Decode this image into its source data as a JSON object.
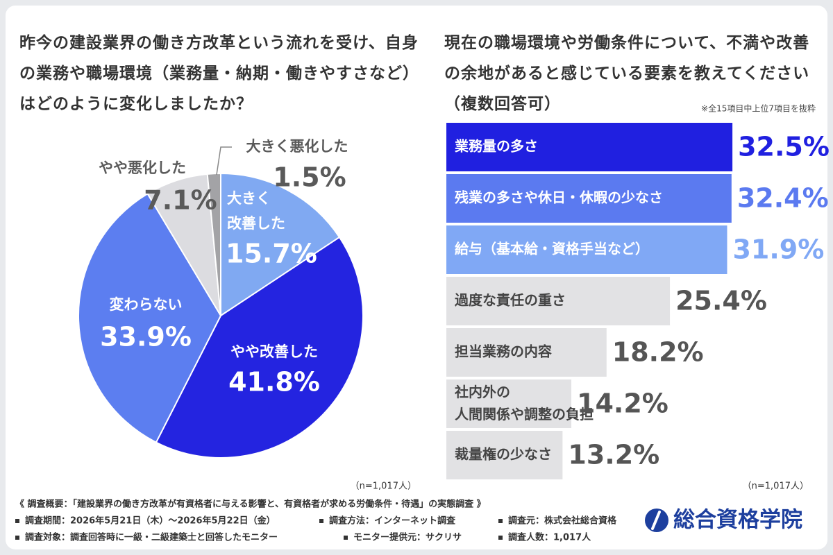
{
  "chart_data": [
    {
      "type": "pie",
      "title": "昨今の建設業界の働き方改革という流れを受け、自身の業務や職場環境（業務量・納期・働きやすさなど）はどのように変化しましたか？",
      "categories": [
        "大きく改善した",
        "やや改善した",
        "変わらない",
        "やや悪化した",
        "大きく悪化した"
      ],
      "values": [
        15.7,
        41.8,
        33.9,
        7.1,
        1.5
      ],
      "value_labels": [
        "15.7%",
        "41.8%",
        "33.9%",
        "7.1%",
        "1.5%"
      ],
      "colors": [
        "#80a9f2",
        "#2424e0",
        "#5c7ef0",
        "#dcdce0",
        "#a3a3a6"
      ],
      "label_colors": [
        "#ffffff",
        "#ffffff",
        "#ffffff",
        "#5a5a5a",
        "#5a5a5a"
      ],
      "annotation": "（n=1,017人）"
    },
    {
      "type": "bar",
      "title": "現在の職場環境や労働条件について、不満や改善の余地があると感じている要素を教えてください（複数回答可）",
      "subtitle": "※全15項目中上位7項目を抜粋",
      "categories": [
        "業務量の多さ",
        "残業の多さや休日・休暇の少なさ",
        "給与（基本給・資格手当など）",
        "過度な責任の重さ",
        "担当業務の内容",
        "社内外の人間関係や調整の負担",
        "裁量権の少なさ"
      ],
      "values": [
        32.5,
        32.4,
        31.9,
        25.4,
        18.2,
        14.2,
        13.2
      ],
      "value_labels": [
        "32.5%",
        "32.4%",
        "31.9%",
        "25.4%",
        "18.2%",
        "14.2%",
        "13.2%"
      ],
      "colors": [
        "#2020e0",
        "#5b7af0",
        "#80a8f5",
        "#e2e2e4",
        "#e2e2e4",
        "#e2e2e4",
        "#e2e2e4"
      ],
      "text_colors": [
        "#ffffff",
        "#ffffff",
        "#ffffff",
        "#444444",
        "#444444",
        "#444444",
        "#444444"
      ],
      "label_colors": [
        "#2020e0",
        "#5b7af0",
        "#80a8f5",
        "#555555",
        "#555555",
        "#555555",
        "#555555"
      ],
      "annotation": "（n=1,017人）"
    }
  ],
  "footer": {
    "overview": "《 調査概要：「建設業界の働き方改革が有資格者に与える影響と、有資格者が求める労働条件・待遇」の実態調査 》",
    "items": [
      "調査期間：2026年5月21日（木）～2026年5月22日（金）",
      "調査方法：インターネット調査",
      "調査元：株式会社総合資格",
      "調査対象：調査回答時に一級・二級建築士と回答したモニター",
      "モニター提供元：サクリサ",
      "調査人数：1,017人"
    ]
  },
  "logo": "総合資格学院"
}
